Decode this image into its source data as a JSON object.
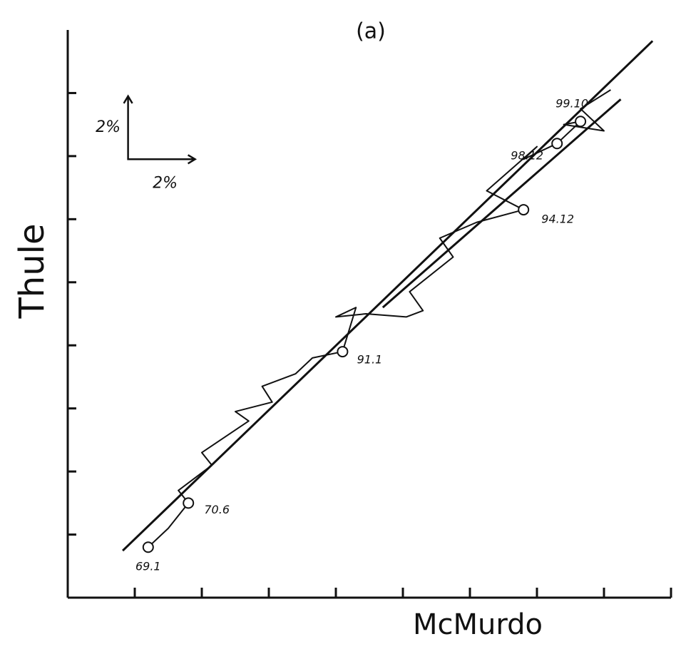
{
  "chart_data": {
    "type": "line",
    "title": "(a)",
    "x_label": "McMurdo",
    "y_label": "Thule",
    "xlim": [
      0,
      18
    ],
    "ylim": [
      0,
      18
    ],
    "xticks": [
      2,
      4,
      6,
      8,
      10,
      12,
      14,
      16,
      18
    ],
    "yticks": [
      2,
      4,
      6,
      8,
      10,
      12,
      14,
      16
    ],
    "series": [
      {
        "color": "#111111",
        "x": [
          2.4,
          3.0,
          3.6,
          3.3,
          4.3,
          4.0,
          5.4,
          5.0,
          6.1,
          5.8,
          6.8,
          7.3,
          8.2,
          8.6,
          8.0,
          8.9,
          10.1,
          10.6,
          10.2,
          11.5,
          11.1,
          12.2,
          13.6,
          12.5,
          14.0,
          13.6,
          14.6,
          15.3,
          14.8,
          16.0,
          15.3,
          16.2
        ],
        "values": [
          1.6,
          2.2,
          3.0,
          3.4,
          4.2,
          4.6,
          5.6,
          5.9,
          6.2,
          6.7,
          7.1,
          7.6,
          7.8,
          9.2,
          8.9,
          9.0,
          8.9,
          9.1,
          9.7,
          10.8,
          11.4,
          11.9,
          12.3,
          12.9,
          14.3,
          13.9,
          14.4,
          15.1,
          15.0,
          14.8,
          15.5,
          16.1
        ]
      },
      {
        "color": "#111111",
        "x": [
          1.64,
          17.45
        ],
        "values": [
          1.49,
          17.65
        ]
      },
      {
        "color": "#111111",
        "x": [
          9.4,
          16.5
        ],
        "values": [
          9.2,
          15.8
        ]
      }
    ],
    "annotations": [
      {
        "text": "69.1",
        "x": 2.4,
        "y": 1.6
      },
      {
        "text": "70.6",
        "x": 3.6,
        "y": 3.0
      },
      {
        "text": "91.1",
        "x": 8.2,
        "y": 7.8
      },
      {
        "text": "94.12",
        "x": 13.6,
        "y": 12.3
      },
      {
        "text": "98.12",
        "x": 14.6,
        "y": 14.4
      },
      {
        "text": "99.10",
        "x": 15.3,
        "y": 15.1
      }
    ],
    "scale_bar": {
      "value": 2,
      "x": 1.8,
      "y": 13.9,
      "x_label": "2%",
      "y_label": "2%"
    }
  }
}
